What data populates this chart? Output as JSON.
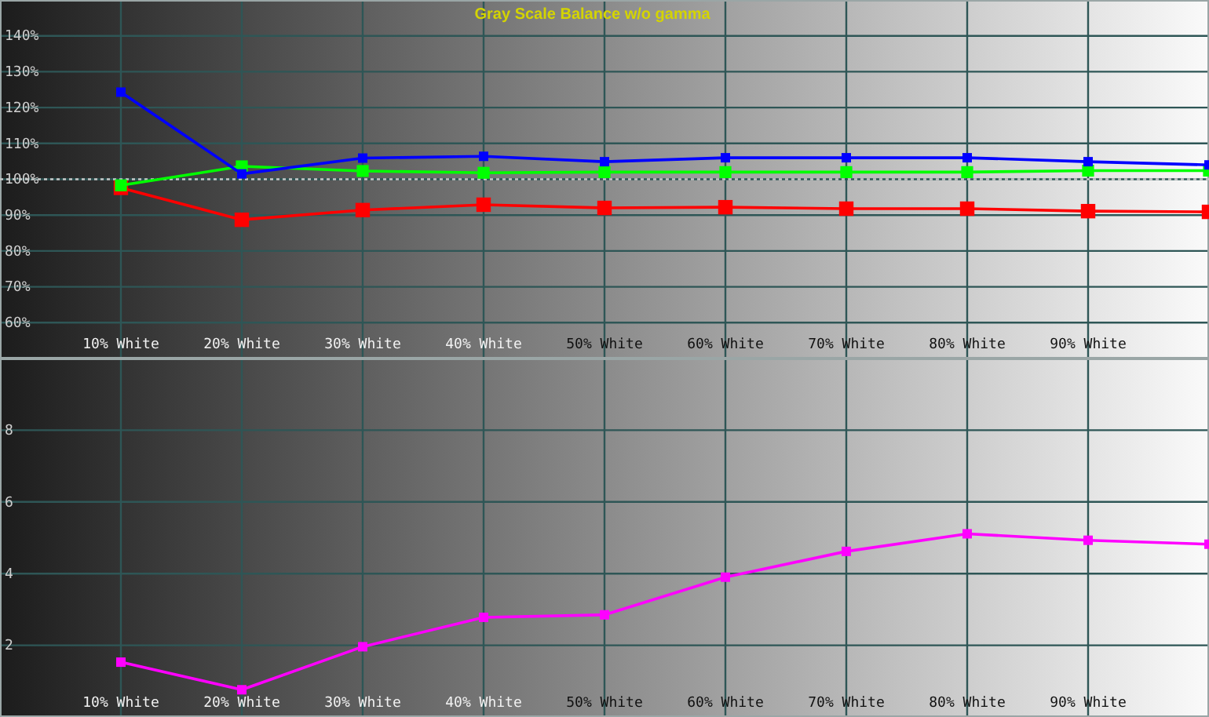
{
  "chart_data": [
    {
      "type": "line",
      "title": "Gray Scale Balance w/o gamma",
      "x": [
        10,
        20,
        30,
        40,
        50,
        60,
        70,
        80,
        90,
        100
      ],
      "xlim": [
        0,
        100
      ],
      "xticks": [
        {
          "value": 10,
          "label": "10% White"
        },
        {
          "value": 20,
          "label": "20% White"
        },
        {
          "value": 30,
          "label": "30% White"
        },
        {
          "value": 40,
          "label": "40% White"
        },
        {
          "value": 50,
          "label": "50% White"
        },
        {
          "value": 60,
          "label": "60% White"
        },
        {
          "value": 70,
          "label": "70% White"
        },
        {
          "value": 80,
          "label": "80% White"
        },
        {
          "value": 90,
          "label": "90% White"
        }
      ],
      "ylim": [
        50,
        150
      ],
      "yticks": [
        {
          "value": 60,
          "label": "60%"
        },
        {
          "value": 70,
          "label": "70%"
        },
        {
          "value": 80,
          "label": "80%"
        },
        {
          "value": 90,
          "label": "90%"
        },
        {
          "value": 100,
          "label": "100%"
        },
        {
          "value": 110,
          "label": "110%"
        },
        {
          "value": 120,
          "label": "120%"
        },
        {
          "value": 130,
          "label": "130%"
        },
        {
          "value": 140,
          "label": "140%"
        }
      ],
      "series": [
        {
          "color": "#ff0000",
          "values": [
            97.6,
            88.7,
            91.4,
            92.9,
            92.0,
            92.2,
            91.8,
            91.8,
            91.1,
            90.9
          ]
        },
        {
          "color": "#00ff00",
          "values": [
            98.3,
            103.6,
            102.3,
            101.8,
            102.0,
            102.0,
            102.0,
            102.0,
            102.4,
            102.4
          ]
        },
        {
          "color": "#0000ff",
          "values": [
            124.3,
            101.5,
            105.9,
            106.4,
            104.9,
            106.0,
            106.0,
            106.0,
            104.9,
            104.0
          ]
        }
      ],
      "ref_lines": [
        {
          "axis": "y",
          "value": 100,
          "color": "#c8c8c8",
          "line_style": "dotted"
        }
      ],
      "grid": true,
      "marker": "square"
    },
    {
      "type": "line",
      "x": [
        10,
        20,
        30,
        40,
        50,
        60,
        70,
        80,
        90,
        100
      ],
      "xlim": [
        0,
        100
      ],
      "xticks": [
        {
          "value": 10,
          "label": "10% White"
        },
        {
          "value": 20,
          "label": "20% White"
        },
        {
          "value": 30,
          "label": "30% White"
        },
        {
          "value": 40,
          "label": "40% White"
        },
        {
          "value": 50,
          "label": "50% White"
        },
        {
          "value": 60,
          "label": "60% White"
        },
        {
          "value": 70,
          "label": "70% White"
        },
        {
          "value": 80,
          "label": "80% White"
        },
        {
          "value": 90,
          "label": "90% White"
        }
      ],
      "ylim": [
        0,
        10
      ],
      "yticks": [
        2,
        4,
        6,
        8
      ],
      "series": [
        {
          "color": "#ff00ff",
          "values": [
            1.53,
            0.76,
            1.96,
            2.78,
            2.85,
            3.9,
            4.62,
            5.11,
            4.93,
            4.82
          ]
        }
      ],
      "grid": true,
      "marker": "square"
    }
  ]
}
